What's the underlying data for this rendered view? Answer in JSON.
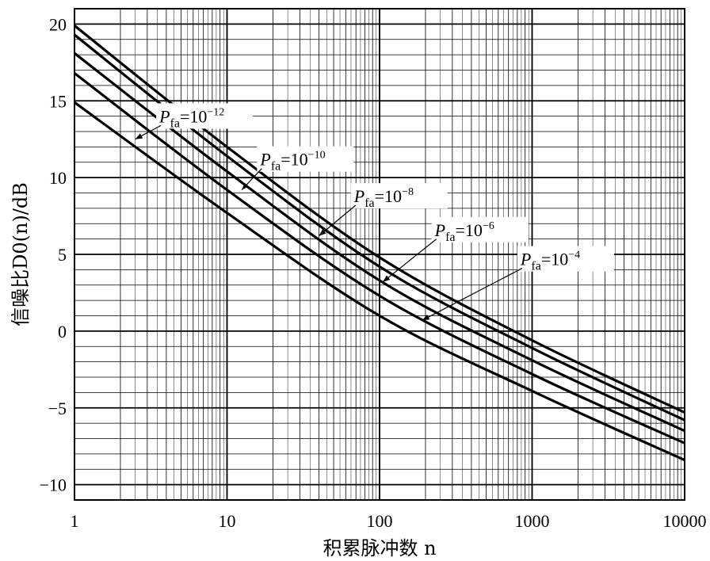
{
  "chart_data": {
    "type": "line",
    "title": "",
    "xlabel": "积累脉冲数 n",
    "ylabel": "信噪比D0(n)/dB",
    "xscale": "log",
    "xlim": [
      1,
      10000
    ],
    "ylim": [
      -11,
      21
    ],
    "grid": true,
    "x_tick_labels": [
      "1",
      "10",
      "100",
      "1000",
      "10000"
    ],
    "y_tick_labels": [
      "20",
      "15",
      "10",
      "5",
      "0",
      "−5",
      "−10"
    ],
    "y_ticks": [
      20,
      15,
      10,
      5,
      0,
      -5,
      -10
    ],
    "x": [
      1,
      10,
      100,
      1000,
      10000
    ],
    "series": [
      {
        "name": "Pfa=10^-12",
        "values": [
          19.9,
          12.0,
          4.8,
          -0.6,
          -5.3
        ]
      },
      {
        "name": "Pfa=10^-10",
        "values": [
          19.3,
          11.4,
          4.2,
          -1.1,
          -5.8
        ]
      },
      {
        "name": "Pfa=10^-8",
        "values": [
          18.1,
          10.4,
          3.3,
          -1.9,
          -6.5
        ]
      },
      {
        "name": "Pfa=10^-6",
        "values": [
          16.8,
          9.2,
          2.3,
          -2.8,
          -7.3
        ]
      },
      {
        "name": "Pfa=10^-4",
        "values": [
          14.9,
          7.7,
          1.0,
          -3.9,
          -8.4
        ]
      }
    ],
    "annotations": [
      {
        "label_main": "P",
        "label_sub": "fa",
        "label_eq": "=10",
        "label_sup": "−12",
        "text_x": 3.6,
        "text_y": 13.6,
        "arrow_to": [
          2.5,
          12.5
        ]
      },
      {
        "label_main": "P",
        "label_sub": "fa",
        "label_eq": "=10",
        "label_sup": "−10",
        "text_x": 16.5,
        "text_y": 10.8,
        "arrow_to": [
          12.5,
          9.2
        ]
      },
      {
        "label_main": "P",
        "label_sub": "fa",
        "label_eq": "=10",
        "label_sup": "−8",
        "text_x": 68,
        "text_y": 8.4,
        "arrow_to": [
          40,
          6.2
        ]
      },
      {
        "label_main": "P",
        "label_sub": "fa",
        "label_eq": "=10",
        "label_sup": "−6",
        "text_x": 230,
        "text_y": 6.2,
        "arrow_to": [
          105,
          3.2
        ]
      },
      {
        "label_main": "P",
        "label_sub": "fa",
        "label_eq": "=10",
        "label_sup": "−4",
        "text_x": 840,
        "text_y": 4.3,
        "arrow_to": [
          190,
          0.7
        ]
      }
    ]
  }
}
